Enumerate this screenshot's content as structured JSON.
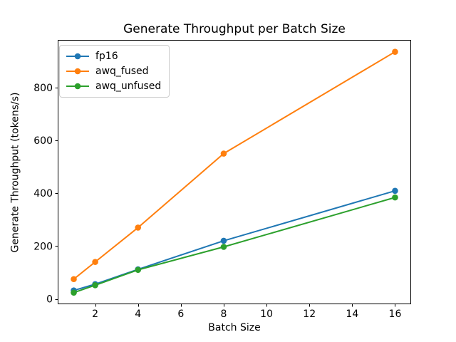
{
  "chart_data": {
    "type": "line",
    "title": "Generate Throughput per Batch Size",
    "xlabel": "Batch Size",
    "ylabel": "Generate Throughput (tokens/s)",
    "x": [
      1,
      2,
      4,
      8,
      16
    ],
    "series": [
      {
        "name": "fp16",
        "color": "#1f77b4",
        "values": [
          32,
          56,
          112,
          220,
          409
        ]
      },
      {
        "name": "awq_fused",
        "color": "#ff7f0e",
        "values": [
          75,
          140,
          270,
          550,
          935
        ]
      },
      {
        "name": "awq_unfused",
        "color": "#2ca02c",
        "values": [
          24,
          52,
          110,
          197,
          384
        ]
      }
    ],
    "xticks": [
      2,
      4,
      6,
      8,
      10,
      12,
      14,
      16
    ],
    "yticks": [
      0,
      200,
      400,
      600,
      800
    ],
    "xlim": [
      0.25,
      16.75
    ],
    "ylim": [
      -20,
      980
    ],
    "grid": false,
    "marker": "circle",
    "legend_position": "upper left",
    "spine_color": "#000000",
    "tick_label_color": "#000000"
  }
}
